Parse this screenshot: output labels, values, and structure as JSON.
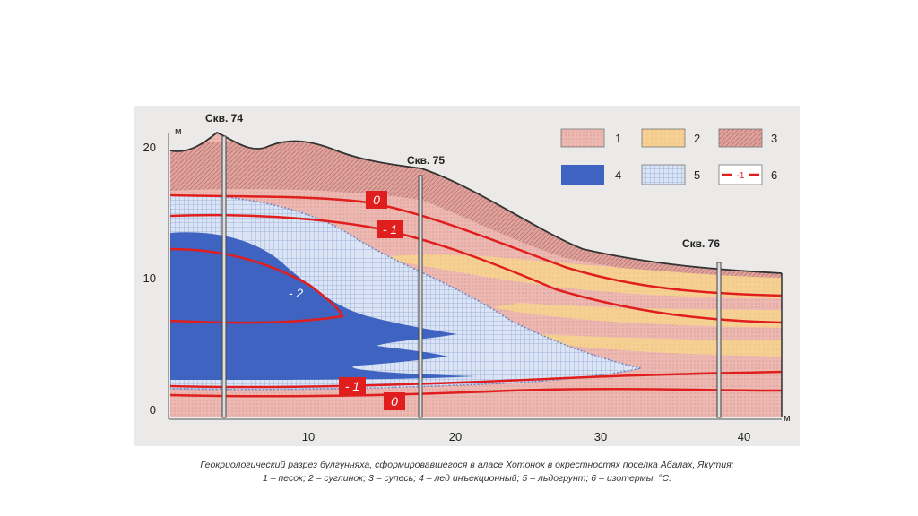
{
  "axes": {
    "y_unit": "м",
    "x_unit": "м",
    "y_ticks": [
      "0",
      "10",
      "20"
    ],
    "x_ticks": [
      "10",
      "20",
      "30",
      "40"
    ]
  },
  "wells": [
    {
      "label": "Скв. 74"
    },
    {
      "label": "Скв. 75"
    },
    {
      "label": "Скв. 76"
    }
  ],
  "isotherm_labels": [
    "0",
    "- 1",
    "- 2",
    "- 1",
    "0"
  ],
  "legend": [
    {
      "num": "1",
      "color": "#e8b0ab"
    },
    {
      "num": "2",
      "color": "#f5cc8e"
    },
    {
      "num": "3",
      "color": "#d89a95"
    },
    {
      "num": "4",
      "color": "#3f63c0"
    },
    {
      "num": "5",
      "color": "#cfdbf0"
    },
    {
      "num": "6",
      "sample": "-1",
      "color": "#e01e1e"
    }
  ],
  "caption": {
    "line1": "Геокриологический разрез булгунняха, сформировавшегося в аласе Хотонок в окрестностях поселка Абалах, Якутия:",
    "line2": "1 – песок; 2 – суглинок; 3 – супесь; 4 – лед инъекционный; 5 – льдогрунт; 6 – изотермы, °С."
  }
}
